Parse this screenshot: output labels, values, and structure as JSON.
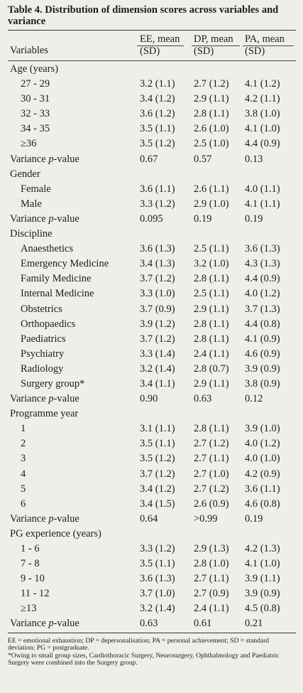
{
  "table": {
    "title": "Table 4. Distribution of dimension scores across variables and variance",
    "headers": {
      "variables": "Variables",
      "ee_line1": "EE, mean",
      "ee_line2": "(SD)",
      "dp_line1": "DP, mean",
      "dp_line2": "(SD)",
      "pa_line1": "PA, mean",
      "pa_line2": "(SD)"
    },
    "rows": [
      {
        "label": "Age (years)",
        "ee": "",
        "dp": "",
        "pa": "",
        "indent": false
      },
      {
        "label": "27 - 29",
        "ee": "3.2 (1.1)",
        "dp": "2.7 (1.2)",
        "pa": "4.1 (1.2)",
        "indent": true
      },
      {
        "label": "30 - 31",
        "ee": "3.4 (1.2)",
        "dp": "2.9 (1.1)",
        "pa": "4.2 (1.1)",
        "indent": true
      },
      {
        "label": "32 - 33",
        "ee": "3.6 (1.2)",
        "dp": "2.8 (1.1)",
        "pa": "3.8 (1.0)",
        "indent": true
      },
      {
        "label": "34 - 35",
        "ee": "3.5 (1.1)",
        "dp": "2.6 (1.0)",
        "pa": "4.1 (1.0)",
        "indent": true
      },
      {
        "label": "≥36",
        "ee": "3.5 (1.2)",
        "dp": "2.5 (1.0)",
        "pa": "4.4 (0.9)",
        "indent": true
      },
      {
        "label": "Variance p-value",
        "ee": "0.67",
        "dp": "0.57",
        "pa": "0.13",
        "indent": false
      },
      {
        "label": "Gender",
        "ee": "",
        "dp": "",
        "pa": "",
        "indent": false
      },
      {
        "label": "Female",
        "ee": "3.6 (1.1)",
        "dp": "2.6 (1.1)",
        "pa": "4.0 (1.1)",
        "indent": true
      },
      {
        "label": "Male",
        "ee": "3.3 (1.2)",
        "dp": "2.9 (1.0)",
        "pa": "4.1 (1.1)",
        "indent": true
      },
      {
        "label": "Variance p-value",
        "ee": "0.095",
        "dp": "0.19",
        "pa": "0.19",
        "indent": false
      },
      {
        "label": "Discipline",
        "ee": "",
        "dp": "",
        "pa": "",
        "indent": false
      },
      {
        "label": "Anaesthetics",
        "ee": "3.6 (1.3)",
        "dp": "2.5 (1.1)",
        "pa": "3.6 (1.3)",
        "indent": true
      },
      {
        "label": "Emergency Medicine",
        "ee": "3.4 (1.3)",
        "dp": "3.2 (1.0)",
        "pa": "4.3 (1.3)",
        "indent": true
      },
      {
        "label": "Family Medicine",
        "ee": "3.7 (1.2)",
        "dp": "2.8 (1.1)",
        "pa": "4.4 (0.9)",
        "indent": true
      },
      {
        "label": "Internal Medicine",
        "ee": "3.3 (1.0)",
        "dp": "2.5 (1.1)",
        "pa": "4.0 (1.2)",
        "indent": true
      },
      {
        "label": "Obstetrics",
        "ee": "3.7 (0.9)",
        "dp": "2.9 (1.1)",
        "pa": "3.7 (1.3)",
        "indent": true
      },
      {
        "label": "Orthopaedics",
        "ee": "3.9 (1.2)",
        "dp": "2.8 (1.1)",
        "pa": "4.4 (0.8)",
        "indent": true
      },
      {
        "label": "Paediatrics",
        "ee": "3.7 (1.2)",
        "dp": "2.8 (1.1)",
        "pa": "4.1 (0.9)",
        "indent": true
      },
      {
        "label": "Psychiatry",
        "ee": "3.3 (1.4)",
        "dp": "2.4 (1.1)",
        "pa": "4.6 (0.9)",
        "indent": true
      },
      {
        "label": "Radiology",
        "ee": "3.2 (1.4)",
        "dp": "2.8 (0.7)",
        "pa": "3.9 (0.9)",
        "indent": true
      },
      {
        "label": "Surgery group*",
        "ee": "3.4 (1.1)",
        "dp": "2.9 (1.1)",
        "pa": "3.8 (0.9)",
        "indent": true
      },
      {
        "label": "Variance p-value",
        "ee": "0.90",
        "dp": "0.63",
        "pa": "0.12",
        "indent": false
      },
      {
        "label": "Programme year",
        "ee": "",
        "dp": "",
        "pa": "",
        "indent": false
      },
      {
        "label": "1",
        "ee": "3.1 (1.1)",
        "dp": "2.8 (1.1)",
        "pa": "3.9 (1.0)",
        "indent": true
      },
      {
        "label": "2",
        "ee": "3.5 (1.1)",
        "dp": "2.7 (1.2)",
        "pa": "4.0 (1.2)",
        "indent": true
      },
      {
        "label": "3",
        "ee": "3.5 (1.2)",
        "dp": "2.7 (1.1)",
        "pa": "4.0 (1.0)",
        "indent": true
      },
      {
        "label": "4",
        "ee": "3.7 (1.2)",
        "dp": "2.7 (1.0)",
        "pa": "4.2 (0.9)",
        "indent": true
      },
      {
        "label": "5",
        "ee": "3.4 (1.2)",
        "dp": "2.7 (1.2)",
        "pa": "3.6 (1.1)",
        "indent": true
      },
      {
        "label": "6",
        "ee": "3.4 (1.5)",
        "dp": "2.6 (0.9)",
        "pa": "4.6 (0.8)",
        "indent": true
      },
      {
        "label": "Variance p-value",
        "ee": "0.64",
        "dp": ">0.99",
        "pa": "0.19",
        "indent": false
      },
      {
        "label": "PG experience (years)",
        "ee": "",
        "dp": "",
        "pa": "",
        "indent": false
      },
      {
        "label": "1 - 6",
        "ee": "3.3 (1.2)",
        "dp": "2.9 (1.3)",
        "pa": "4.2 (1.3)",
        "indent": true
      },
      {
        "label": "7 - 8",
        "ee": "3.5 (1.1)",
        "dp": "2.8 (1.0)",
        "pa": "4.1 (1.0)",
        "indent": true
      },
      {
        "label": "9 - 10",
        "ee": "3.6 (1.3)",
        "dp": "2.7 (1.1)",
        "pa": "3.9 (1.1)",
        "indent": true
      },
      {
        "label": "11 - 12",
        "ee": "3.7 (1.0)",
        "dp": "2.7 (0.9)",
        "pa": "3.9 (0.9)",
        "indent": true
      },
      {
        "label": "≥13",
        "ee": "3.2 (1.4)",
        "dp": "2.4 (1.1)",
        "pa": "4.5 (0.8)",
        "indent": true
      },
      {
        "label": "Variance p-value",
        "ee": "0.63",
        "dp": "0.61",
        "pa": "0.21",
        "indent": false
      }
    ],
    "footnotes": [
      "EE = emotional exhaustion; DP = depersonalisation; PA = personal achievement; SD = standard deviation; PG = postgraduate.",
      "*Owing to small group sizes, Cardiothoracic Surgery, Neurosurgery, Ophthalmology and Paediatric Surgery were combined into the Surgery group."
    ]
  }
}
